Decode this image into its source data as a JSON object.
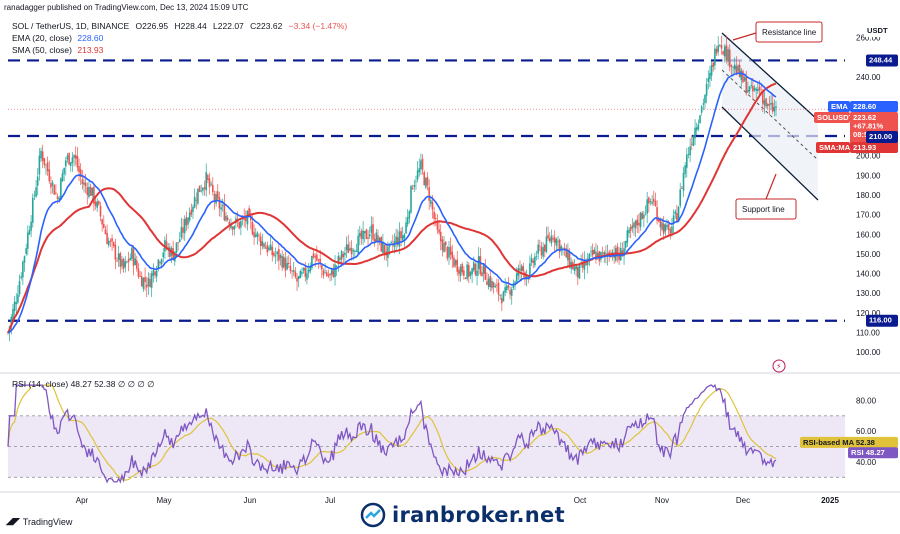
{
  "header": {
    "published": "ranadagger published on TradingView.com, Dec 13, 2024 15:09 UTC",
    "symbol": "SOL / TetherUS, 1D, BINANCE",
    "o": "O226.95",
    "h": "H228.44",
    "l": "L222.07",
    "c": "C223.62",
    "chg": "−3.34 (−1.47%)"
  },
  "legend": [
    {
      "label": "EMA (20, close)",
      "value": "228.60",
      "color": "#2962ff"
    },
    {
      "label": "SMA (50, close)",
      "value": "213.93",
      "color": "#e03535"
    }
  ],
  "annotations": {
    "resistance": "Resistance line",
    "support": "Support line"
  },
  "footer": {
    "tv": "TradingView",
    "brand": "iranbroker.net"
  },
  "colors": {
    "up": "#26a69a",
    "down": "#ef5350",
    "ema": "#2962ff",
    "sma": "#e03535",
    "level": "#0a1a8f",
    "rsi": "#7e57c2",
    "rsima": "#e0c33a",
    "rsiband": "#ede7f6"
  },
  "chart_data": [
    {
      "type": "candlestick",
      "currency": "USDT",
      "x_ticks": [
        "Apr",
        "May",
        "Jun",
        "Jul",
        "Oct",
        "Nov",
        "Dec",
        "2025"
      ],
      "y_ticks": [
        100,
        110,
        120,
        130,
        140,
        150,
        160,
        170,
        180,
        190,
        200,
        240,
        260
      ],
      "ylim": [
        95,
        268
      ],
      "grid": false,
      "horizontal_levels": [
        248.44,
        210.0,
        116.0
      ],
      "price_tags": [
        {
          "label": "USDT"
        },
        {
          "label": "248.44",
          "value": 248.44
        },
        {
          "label": "EMA",
          "value": "228.60"
        },
        {
          "label": "SOLUSDT",
          "value": "223.62",
          "change": "+67.81%",
          "countdown": "08:50:55"
        },
        {
          "label": "SMA:MA",
          "value": "213.93"
        },
        {
          "label": "210.00",
          "value": 210.0
        },
        {
          "label": "116.00",
          "value": 116.0
        }
      ],
      "series": [
        {
          "name": "EMA (20, close)",
          "last": 228.6
        },
        {
          "name": "SMA (50, close)",
          "last": 213.93
        }
      ],
      "approx_path_days_vs_close": [
        [
          0,
          110
        ],
        [
          5,
          128
        ],
        [
          10,
          150
        ],
        [
          15,
          175
        ],
        [
          20,
          202
        ],
        [
          25,
          190
        ],
        [
          30,
          178
        ],
        [
          35,
          198
        ],
        [
          40,
          200
        ],
        [
          45,
          186
        ],
        [
          50,
          182
        ],
        [
          55,
          172
        ],
        [
          60,
          158
        ],
        [
          65,
          150
        ],
        [
          70,
          142
        ],
        [
          75,
          150
        ],
        [
          80,
          138
        ],
        [
          85,
          135
        ],
        [
          90,
          145
        ],
        [
          95,
          154
        ],
        [
          100,
          150
        ],
        [
          105,
          160
        ],
        [
          110,
          172
        ],
        [
          115,
          182
        ],
        [
          120,
          188
        ],
        [
          125,
          178
        ],
        [
          130,
          172
        ],
        [
          135,
          166
        ],
        [
          140,
          165
        ],
        [
          145,
          168
        ],
        [
          150,
          160
        ],
        [
          155,
          155
        ],
        [
          160,
          150
        ],
        [
          165,
          148
        ],
        [
          170,
          142
        ],
        [
          175,
          136
        ],
        [
          180,
          140
        ],
        [
          185,
          150
        ],
        [
          190,
          142
        ],
        [
          195,
          138
        ],
        [
          200,
          146
        ],
        [
          205,
          152
        ],
        [
          210,
          155
        ],
        [
          215,
          158
        ],
        [
          220,
          162
        ],
        [
          225,
          155
        ],
        [
          230,
          150
        ],
        [
          235,
          157
        ],
        [
          240,
          160
        ],
        [
          245,
          186
        ],
        [
          250,
          194
        ],
        [
          255,
          180
        ],
        [
          260,
          160
        ],
        [
          265,
          152
        ],
        [
          270,
          146
        ],
        [
          275,
          142
        ],
        [
          280,
          140
        ],
        [
          285,
          145
        ],
        [
          290,
          138
        ],
        [
          295,
          132
        ],
        [
          300,
          128
        ],
        [
          305,
          134
        ],
        [
          310,
          142
        ],
        [
          315,
          140
        ],
        [
          320,
          150
        ],
        [
          325,
          154
        ],
        [
          330,
          160
        ],
        [
          335,
          153
        ],
        [
          340,
          146
        ],
        [
          345,
          140
        ],
        [
          350,
          145
        ],
        [
          355,
          150
        ],
        [
          360,
          148
        ],
        [
          365,
          152
        ],
        [
          370,
          148
        ],
        [
          375,
          158
        ],
        [
          380,
          164
        ],
        [
          385,
          172
        ],
        [
          390,
          178
        ],
        [
          395,
          166
        ],
        [
          400,
          160
        ],
        [
          405,
          170
        ],
        [
          410,
          196
        ],
        [
          415,
          212
        ],
        [
          420,
          225
        ],
        [
          425,
          240
        ],
        [
          430,
          260
        ],
        [
          435,
          252
        ],
        [
          440,
          245
        ],
        [
          445,
          238
        ],
        [
          450,
          232
        ],
        [
          455,
          234
        ],
        [
          460,
          224
        ],
        [
          465,
          223.62
        ]
      ]
    },
    {
      "type": "line",
      "title": "RSI (14, close)",
      "y_ticks": [
        40.0,
        60.0,
        80.0
      ],
      "ylim": [
        25,
        92
      ],
      "band": [
        30,
        70
      ],
      "series": [
        {
          "name": "RSI",
          "last": 48.27
        },
        {
          "name": "RSI-based MA",
          "last": 52.38
        }
      ],
      "values_nan": [
        "∅",
        "∅",
        "∅",
        "∅"
      ]
    }
  ]
}
